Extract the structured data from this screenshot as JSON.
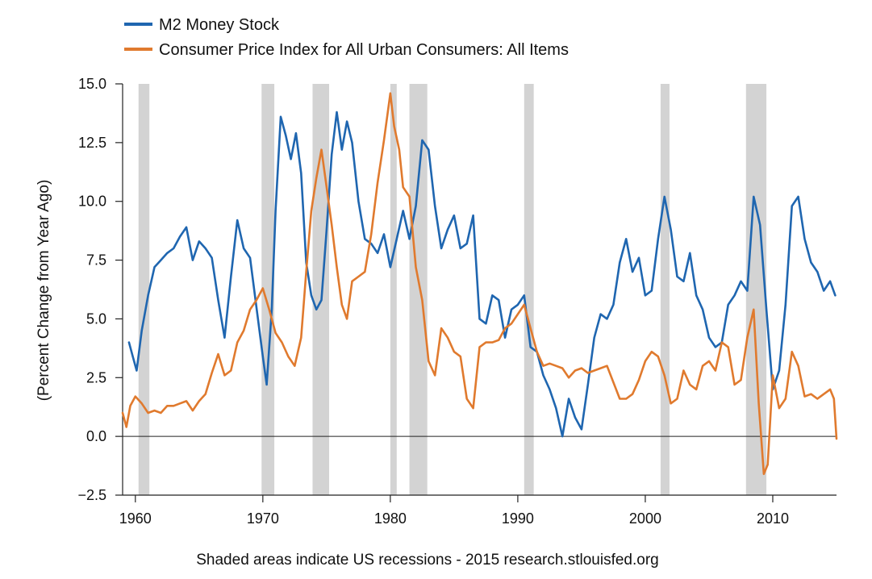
{
  "chart_data": {
    "type": "line",
    "ylabel": "(Percent Change from Year Ago)",
    "xlabel": "",
    "note": "Shaded areas indicate US recessions - 2015 research.stlouisfed.org",
    "xlim": [
      1959,
      2015
    ],
    "ylim": [
      -2.5,
      15.0
    ],
    "x_ticks": [
      1960,
      1970,
      1980,
      1990,
      2000,
      2010
    ],
    "y_ticks": [
      -2.5,
      0.0,
      2.5,
      5.0,
      7.5,
      10.0,
      12.5,
      15.0
    ],
    "y_tick_labels": [
      "−2.5",
      "0.0",
      "2.5",
      "5.0",
      "7.5",
      "10.0",
      "12.5",
      "15.0"
    ],
    "recessions": [
      [
        1960.25,
        1961.1
      ],
      [
        1969.9,
        1970.9
      ],
      [
        1973.9,
        1975.2
      ],
      [
        1980.0,
        1980.5
      ],
      [
        1981.5,
        1982.9
      ],
      [
        1990.5,
        1991.25
      ],
      [
        2001.2,
        2001.9
      ],
      [
        2007.9,
        2009.5
      ]
    ],
    "colors": {
      "m2": "#1f66b0",
      "cpi": "#e07a2e",
      "recession": "#d3d3d3",
      "axis": "#222222"
    },
    "series": [
      {
        "name": "M2 Money Stock",
        "color": "#1f66b0",
        "x": [
          1959.5,
          1959.8,
          1960.1,
          1960.5,
          1961.0,
          1961.5,
          1962.0,
          1962.5,
          1963.0,
          1963.5,
          1964.0,
          1964.5,
          1965.0,
          1965.5,
          1966.0,
          1966.5,
          1967.0,
          1967.5,
          1968.0,
          1968.5,
          1969.0,
          1969.5,
          1970.0,
          1970.3,
          1970.7,
          1971.0,
          1971.4,
          1971.8,
          1972.2,
          1972.6,
          1973.0,
          1973.4,
          1973.8,
          1974.2,
          1974.6,
          1975.0,
          1975.4,
          1975.8,
          1976.2,
          1976.6,
          1977.0,
          1977.5,
          1978.0,
          1978.5,
          1979.0,
          1979.5,
          1980.0,
          1980.5,
          1981.0,
          1981.5,
          1982.0,
          1982.5,
          1983.0,
          1983.5,
          1984.0,
          1984.5,
          1985.0,
          1985.5,
          1986.0,
          1986.5,
          1987.0,
          1987.5,
          1988.0,
          1988.5,
          1989.0,
          1989.5,
          1990.0,
          1990.5,
          1991.0,
          1991.5,
          1992.0,
          1992.5,
          1993.0,
          1993.5,
          1994.0,
          1994.5,
          1995.0,
          1995.5,
          1996.0,
          1996.5,
          1997.0,
          1997.5,
          1998.0,
          1998.5,
          1999.0,
          1999.5,
          2000.0,
          2000.5,
          2001.0,
          2001.5,
          2002.0,
          2002.5,
          2003.0,
          2003.5,
          2004.0,
          2004.5,
          2005.0,
          2005.5,
          2006.0,
          2006.5,
          2007.0,
          2007.5,
          2008.0,
          2008.5,
          2009.0,
          2009.5,
          2010.0,
          2010.5,
          2011.0,
          2011.5,
          2012.0,
          2012.5,
          2013.0,
          2013.5,
          2014.0,
          2014.5,
          2014.9
        ],
        "values": [
          4.0,
          3.4,
          2.8,
          4.5,
          6.0,
          7.2,
          7.5,
          7.8,
          8.0,
          8.5,
          8.9,
          7.5,
          8.3,
          8.0,
          7.6,
          5.8,
          4.2,
          6.8,
          9.2,
          8.0,
          7.6,
          5.5,
          3.4,
          2.2,
          5.4,
          9.6,
          13.6,
          12.8,
          11.8,
          12.9,
          11.2,
          7.4,
          6.0,
          5.4,
          5.8,
          8.8,
          12.0,
          13.8,
          12.2,
          13.4,
          12.5,
          10.0,
          8.4,
          8.2,
          7.8,
          8.6,
          7.2,
          8.4,
          9.6,
          8.4,
          9.8,
          12.6,
          12.2,
          9.8,
          8.0,
          8.8,
          9.4,
          8.0,
          8.2,
          9.4,
          5.0,
          4.8,
          6.0,
          5.8,
          4.2,
          5.4,
          5.6,
          6.0,
          3.8,
          3.6,
          2.6,
          2.0,
          1.2,
          0.0,
          1.6,
          0.8,
          0.3,
          2.2,
          4.2,
          5.2,
          5.0,
          5.6,
          7.4,
          8.4,
          7.0,
          7.6,
          6.0,
          6.2,
          8.4,
          10.2,
          8.8,
          6.8,
          6.6,
          7.8,
          6.0,
          5.4,
          4.2,
          3.8,
          4.0,
          5.6,
          6.0,
          6.6,
          6.2,
          10.2,
          9.0,
          5.4,
          2.0,
          2.8,
          5.6,
          9.8,
          10.2,
          8.4,
          7.4,
          7.0,
          6.2,
          6.6,
          6.0
        ]
      },
      {
        "name": "Consumer Price Index for All Urban Consumers: All Items",
        "color": "#e07a2e",
        "x": [
          1959.0,
          1959.3,
          1959.6,
          1960.0,
          1960.5,
          1961.0,
          1961.5,
          1962.0,
          1962.5,
          1963.0,
          1963.5,
          1964.0,
          1964.5,
          1965.0,
          1965.5,
          1966.0,
          1966.5,
          1967.0,
          1967.5,
          1968.0,
          1968.5,
          1969.0,
          1969.5,
          1970.0,
          1970.5,
          1971.0,
          1971.5,
          1972.0,
          1972.5,
          1973.0,
          1973.4,
          1973.8,
          1974.2,
          1974.6,
          1975.0,
          1975.4,
          1975.8,
          1976.2,
          1976.6,
          1977.0,
          1977.5,
          1978.0,
          1978.5,
          1979.0,
          1979.5,
          1980.0,
          1980.3,
          1980.7,
          1981.0,
          1981.5,
          1982.0,
          1982.5,
          1983.0,
          1983.5,
          1984.0,
          1984.5,
          1985.0,
          1985.5,
          1986.0,
          1986.5,
          1987.0,
          1987.5,
          1988.0,
          1988.5,
          1989.0,
          1989.5,
          1990.0,
          1990.5,
          1991.0,
          1991.5,
          1992.0,
          1992.5,
          1993.0,
          1993.5,
          1994.0,
          1994.5,
          1995.0,
          1995.5,
          1996.0,
          1996.5,
          1997.0,
          1997.5,
          1998.0,
          1998.5,
          1999.0,
          1999.5,
          2000.0,
          2000.5,
          2001.0,
          2001.5,
          2002.0,
          2002.5,
          2003.0,
          2003.5,
          2004.0,
          2004.5,
          2005.0,
          2005.5,
          2006.0,
          2006.5,
          2007.0,
          2007.5,
          2008.0,
          2008.5,
          2008.9,
          2009.3,
          2009.6,
          2010.0,
          2010.5,
          2011.0,
          2011.5,
          2012.0,
          2012.5,
          2013.0,
          2013.5,
          2014.0,
          2014.5,
          2014.8,
          2015.0
        ],
        "values": [
          1.0,
          0.4,
          1.3,
          1.7,
          1.4,
          1.0,
          1.1,
          1.0,
          1.3,
          1.3,
          1.4,
          1.5,
          1.1,
          1.5,
          1.8,
          2.7,
          3.5,
          2.6,
          2.8,
          4.0,
          4.5,
          5.4,
          5.8,
          6.3,
          5.4,
          4.4,
          4.0,
          3.4,
          3.0,
          4.2,
          7.0,
          9.6,
          11.0,
          12.2,
          10.6,
          9.0,
          7.2,
          5.6,
          5.0,
          6.6,
          6.8,
          7.0,
          8.6,
          10.8,
          12.6,
          14.6,
          13.2,
          12.2,
          10.6,
          10.2,
          7.2,
          5.8,
          3.2,
          2.6,
          4.6,
          4.2,
          3.6,
          3.4,
          1.6,
          1.2,
          3.8,
          4.0,
          4.0,
          4.1,
          4.6,
          4.8,
          5.2,
          5.6,
          4.6,
          3.6,
          3.0,
          3.1,
          3.0,
          2.9,
          2.5,
          2.8,
          2.9,
          2.7,
          2.8,
          2.9,
          3.0,
          2.3,
          1.6,
          1.6,
          1.8,
          2.4,
          3.2,
          3.6,
          3.4,
          2.6,
          1.4,
          1.6,
          2.8,
          2.2,
          2.0,
          3.0,
          3.2,
          2.8,
          4.0,
          3.8,
          2.2,
          2.4,
          4.2,
          5.4,
          1.4,
          -1.6,
          -1.2,
          2.6,
          1.2,
          1.6,
          3.6,
          3.0,
          1.7,
          1.8,
          1.6,
          1.8,
          2.0,
          1.6,
          -0.1
        ]
      }
    ]
  }
}
